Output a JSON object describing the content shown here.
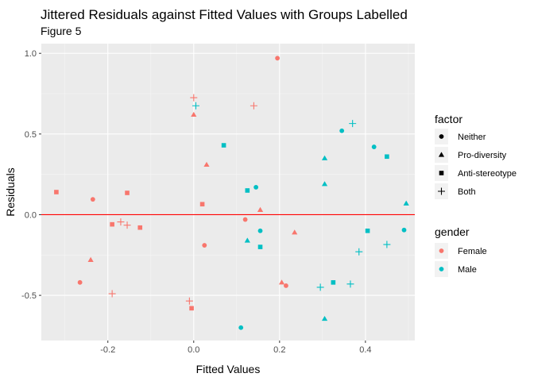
{
  "chart_data": {
    "type": "scatter",
    "title": "Jittered Residuals against Fitted Values with Groups Labelled",
    "subtitle": "Figure 5",
    "xlabel": "Fitted Values",
    "ylabel": "Residuals",
    "xlim": [
      -0.355,
      0.515
    ],
    "ylim": [
      -0.78,
      1.06
    ],
    "x_ticks": [
      -0.2,
      0.0,
      0.2,
      0.4
    ],
    "x_tick_labels": [
      "-0.2",
      "0.0",
      "0.2",
      "0.4"
    ],
    "y_ticks": [
      -0.5,
      0.0,
      0.5,
      1.0
    ],
    "y_tick_labels": [
      "-0.5",
      "0.0",
      "0.5",
      "1.0"
    ],
    "grid": true,
    "background": "#ebebeb",
    "reference_line": {
      "y": 0,
      "color": "#ff0000"
    },
    "legends": [
      {
        "title": "factor",
        "entries": [
          {
            "label": "Neither",
            "shape": "circle"
          },
          {
            "label": "Pro-diversity",
            "shape": "triangle"
          },
          {
            "label": "Anti-stereotype",
            "shape": "square"
          },
          {
            "label": "Both",
            "shape": "plus"
          }
        ]
      },
      {
        "title": "gender",
        "entries": [
          {
            "label": "Female",
            "color": "#f8766d"
          },
          {
            "label": "Male",
            "color": "#00bfc4"
          }
        ]
      }
    ],
    "points": [
      {
        "x": 0.195,
        "y": 0.97,
        "factor": "Neither",
        "gender": "Female"
      },
      {
        "x": -0.235,
        "y": 0.095,
        "factor": "Neither",
        "gender": "Female"
      },
      {
        "x": -0.265,
        "y": -0.42,
        "factor": "Neither",
        "gender": "Female"
      },
      {
        "x": 0.025,
        "y": -0.19,
        "factor": "Neither",
        "gender": "Female"
      },
      {
        "x": 0.12,
        "y": -0.03,
        "factor": "Neither",
        "gender": "Female"
      },
      {
        "x": 0.215,
        "y": -0.44,
        "factor": "Neither",
        "gender": "Female"
      },
      {
        "x": 0.345,
        "y": 0.52,
        "factor": "Neither",
        "gender": "Male"
      },
      {
        "x": 0.42,
        "y": 0.42,
        "factor": "Neither",
        "gender": "Male"
      },
      {
        "x": 0.145,
        "y": 0.17,
        "factor": "Neither",
        "gender": "Male"
      },
      {
        "x": 0.155,
        "y": -0.1,
        "factor": "Neither",
        "gender": "Male"
      },
      {
        "x": 0.49,
        "y": -0.095,
        "factor": "Neither",
        "gender": "Male"
      },
      {
        "x": 0.11,
        "y": -0.7,
        "factor": "Neither",
        "gender": "Male"
      },
      {
        "x": 0.0,
        "y": 0.62,
        "factor": "Pro-diversity",
        "gender": "Female"
      },
      {
        "x": 0.03,
        "y": 0.31,
        "factor": "Pro-diversity",
        "gender": "Female"
      },
      {
        "x": 0.155,
        "y": 0.03,
        "factor": "Pro-diversity",
        "gender": "Female"
      },
      {
        "x": 0.235,
        "y": -0.11,
        "factor": "Pro-diversity",
        "gender": "Female"
      },
      {
        "x": -0.24,
        "y": -0.28,
        "factor": "Pro-diversity",
        "gender": "Female"
      },
      {
        "x": 0.205,
        "y": -0.42,
        "factor": "Pro-diversity",
        "gender": "Female"
      },
      {
        "x": 0.305,
        "y": 0.35,
        "factor": "Pro-diversity",
        "gender": "Male"
      },
      {
        "x": 0.305,
        "y": 0.19,
        "factor": "Pro-diversity",
        "gender": "Male"
      },
      {
        "x": 0.495,
        "y": 0.07,
        "factor": "Pro-diversity",
        "gender": "Male"
      },
      {
        "x": 0.125,
        "y": -0.16,
        "factor": "Pro-diversity",
        "gender": "Male"
      },
      {
        "x": 0.305,
        "y": -0.645,
        "factor": "Pro-diversity",
        "gender": "Male"
      },
      {
        "x": -0.32,
        "y": 0.14,
        "factor": "Anti-stereotype",
        "gender": "Female"
      },
      {
        "x": -0.155,
        "y": 0.135,
        "factor": "Anti-stereotype",
        "gender": "Female"
      },
      {
        "x": 0.02,
        "y": 0.065,
        "factor": "Anti-stereotype",
        "gender": "Female"
      },
      {
        "x": -0.19,
        "y": -0.06,
        "factor": "Anti-stereotype",
        "gender": "Female"
      },
      {
        "x": -0.125,
        "y": -0.08,
        "factor": "Anti-stereotype",
        "gender": "Female"
      },
      {
        "x": -0.005,
        "y": -0.58,
        "factor": "Anti-stereotype",
        "gender": "Female"
      },
      {
        "x": 0.07,
        "y": 0.43,
        "factor": "Anti-stereotype",
        "gender": "Male"
      },
      {
        "x": 0.45,
        "y": 0.36,
        "factor": "Anti-stereotype",
        "gender": "Male"
      },
      {
        "x": 0.125,
        "y": 0.15,
        "factor": "Anti-stereotype",
        "gender": "Male"
      },
      {
        "x": 0.405,
        "y": -0.1,
        "factor": "Anti-stereotype",
        "gender": "Male"
      },
      {
        "x": 0.155,
        "y": -0.2,
        "factor": "Anti-stereotype",
        "gender": "Male"
      },
      {
        "x": 0.325,
        "y": -0.42,
        "factor": "Anti-stereotype",
        "gender": "Male"
      },
      {
        "x": 0.0,
        "y": 0.725,
        "factor": "Both",
        "gender": "Female"
      },
      {
        "x": 0.14,
        "y": 0.675,
        "factor": "Both",
        "gender": "Female"
      },
      {
        "x": -0.17,
        "y": -0.045,
        "factor": "Both",
        "gender": "Female"
      },
      {
        "x": -0.155,
        "y": -0.065,
        "factor": "Both",
        "gender": "Female"
      },
      {
        "x": -0.19,
        "y": -0.49,
        "factor": "Both",
        "gender": "Female"
      },
      {
        "x": -0.01,
        "y": -0.535,
        "factor": "Both",
        "gender": "Female"
      },
      {
        "x": 0.005,
        "y": 0.675,
        "factor": "Both",
        "gender": "Male"
      },
      {
        "x": 0.37,
        "y": 0.565,
        "factor": "Both",
        "gender": "Male"
      },
      {
        "x": 0.45,
        "y": -0.185,
        "factor": "Both",
        "gender": "Male"
      },
      {
        "x": 0.385,
        "y": -0.23,
        "factor": "Both",
        "gender": "Male"
      },
      {
        "x": 0.365,
        "y": -0.43,
        "factor": "Both",
        "gender": "Male"
      },
      {
        "x": 0.295,
        "y": -0.45,
        "factor": "Both",
        "gender": "Male"
      }
    ]
  }
}
